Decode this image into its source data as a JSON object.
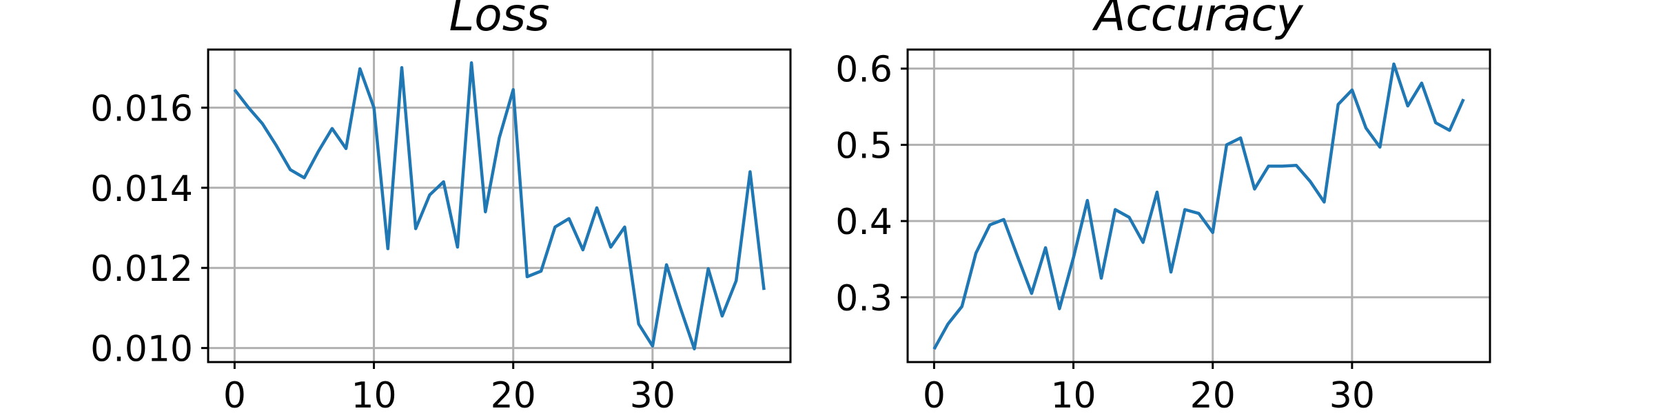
{
  "colors": {
    "series": "#1f77b4",
    "grid": "#b0b0b0"
  },
  "chart_data": [
    {
      "type": "line",
      "title": "Loss",
      "xlabel": "",
      "ylabel": "",
      "grid": true,
      "xlim": [
        -1.9,
        39.9
      ],
      "ylim": [
        0.00965,
        0.01745
      ],
      "xticks": [
        0,
        10,
        20,
        30
      ],
      "xtick_labels": [
        "0",
        "10",
        "20",
        "30"
      ],
      "yticks": [
        0.01,
        0.012,
        0.014,
        0.016
      ],
      "ytick_labels": [
        "0.010",
        "0.012",
        "0.014",
        "0.016"
      ],
      "series": [
        {
          "x": [
            0,
            1,
            2,
            3,
            4,
            5,
            6,
            7,
            8,
            9,
            10,
            11,
            12,
            13,
            14,
            15,
            16,
            17,
            18,
            19,
            20,
            21,
            22,
            23,
            24,
            25,
            26,
            27,
            28,
            29,
            30,
            31,
            32,
            33,
            34,
            35,
            36,
            37,
            38
          ],
          "y": [
            0.01645,
            0.016,
            0.0156,
            0.01505,
            0.01445,
            0.01425,
            0.0149,
            0.01548,
            0.01498,
            0.01697,
            0.016,
            0.01248,
            0.017,
            0.01298,
            0.01382,
            0.01415,
            0.01252,
            0.01712,
            0.0134,
            0.01525,
            0.01645,
            0.01178,
            0.01192,
            0.01302,
            0.01323,
            0.01245,
            0.0135,
            0.01252,
            0.01302,
            0.0106,
            0.01005,
            0.01208,
            0.011,
            0.00998,
            0.01198,
            0.0108,
            0.01168,
            0.0144,
            0.01145
          ]
        }
      ]
    },
    {
      "type": "line",
      "title": "Accuracy",
      "xlabel": "",
      "ylabel": "",
      "grid": true,
      "xlim": [
        -1.9,
        39.9
      ],
      "ylim": [
        0.215,
        0.625
      ],
      "xticks": [
        0,
        10,
        20,
        30
      ],
      "xtick_labels": [
        "0",
        "10",
        "20",
        "30"
      ],
      "yticks": [
        0.3,
        0.4,
        0.5,
        0.6
      ],
      "ytick_labels": [
        "0.3",
        "0.4",
        "0.5",
        "0.6"
      ],
      "series": [
        {
          "x": [
            0,
            1,
            2,
            3,
            4,
            5,
            6,
            7,
            8,
            9,
            10,
            11,
            12,
            13,
            14,
            15,
            16,
            17,
            18,
            19,
            20,
            21,
            22,
            23,
            24,
            25,
            26,
            27,
            28,
            29,
            30,
            31,
            32,
            33,
            34,
            35,
            36,
            37,
            38
          ],
          "y": [
            0.232,
            0.265,
            0.288,
            0.358,
            0.395,
            0.402,
            0.353,
            0.305,
            0.365,
            0.285,
            0.352,
            0.427,
            0.325,
            0.415,
            0.405,
            0.372,
            0.438,
            0.333,
            0.415,
            0.41,
            0.385,
            0.5,
            0.509,
            0.442,
            0.472,
            0.472,
            0.473,
            0.452,
            0.425,
            0.553,
            0.572,
            0.522,
            0.497,
            0.606,
            0.551,
            0.581,
            0.529,
            0.519,
            0.56
          ]
        }
      ]
    }
  ]
}
